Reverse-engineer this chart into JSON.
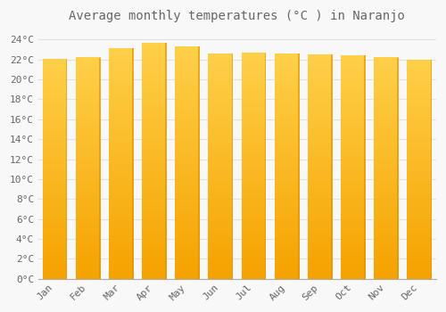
{
  "title": "Average monthly temperatures (°C ) in Naranjo",
  "months": [
    "Jan",
    "Feb",
    "Mar",
    "Apr",
    "May",
    "Jun",
    "Jul",
    "Aug",
    "Sep",
    "Oct",
    "Nov",
    "Dec"
  ],
  "temperatures": [
    22.1,
    22.2,
    23.1,
    23.7,
    23.3,
    22.6,
    22.7,
    22.6,
    22.5,
    22.4,
    22.2,
    22.0
  ],
  "bar_color_top": "#FFD04A",
  "bar_color_bottom": "#F5A300",
  "bar_edge_color": "#E09000",
  "background_color": "#F8F8F8",
  "grid_color": "#E0E0E8",
  "text_color": "#666666",
  "title_fontsize": 10,
  "tick_fontsize": 8,
  "ylim": [
    0,
    25
  ],
  "yticks": [
    0,
    2,
    4,
    6,
    8,
    10,
    12,
    14,
    16,
    18,
    20,
    22,
    24
  ]
}
